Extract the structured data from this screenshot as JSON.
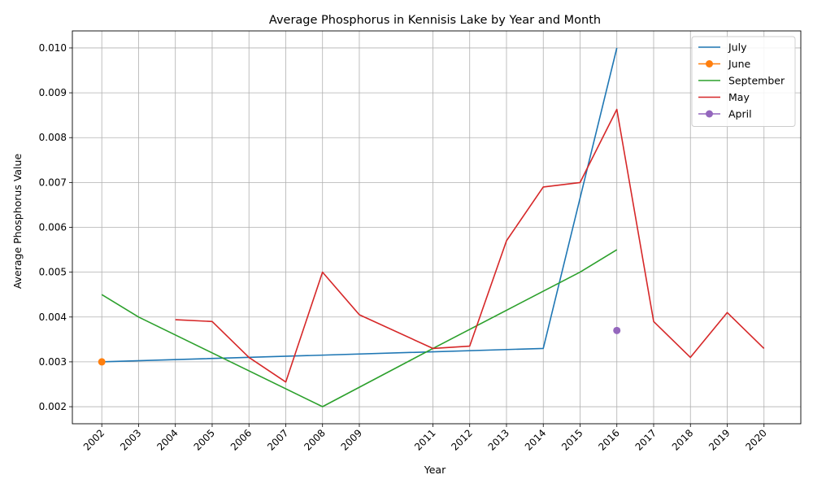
{
  "chart_data": {
    "type": "line",
    "title": "Average Phosphorus in Kennisis Lake by Year and Month",
    "xlabel": "Year",
    "ylabel": "Average Phosphorus Value",
    "xlim": [
      2001.2,
      2021.0
    ],
    "ylim": [
      0.00162,
      0.01038
    ],
    "x_ticks": [
      2002,
      2003,
      2004,
      2005,
      2006,
      2007,
      2008,
      2009,
      2011,
      2012,
      2013,
      2014,
      2015,
      2016,
      2017,
      2018,
      2019,
      2020
    ],
    "y_ticks": [
      0.002,
      0.003,
      0.004,
      0.005,
      0.006,
      0.007,
      0.008,
      0.009,
      0.01
    ],
    "y_tick_labels": [
      "0.002",
      "0.003",
      "0.004",
      "0.005",
      "0.006",
      "0.007",
      "0.008",
      "0.009",
      "0.010"
    ],
    "grid": true,
    "legend_position": "top-right",
    "series": [
      {
        "name": "July",
        "color": "#1f77b4",
        "marker": false,
        "points": [
          [
            2002,
            0.003
          ],
          [
            2014,
            0.0033
          ],
          [
            2016,
            0.01
          ]
        ]
      },
      {
        "name": "June",
        "color": "#ff7f0e",
        "marker": true,
        "points": [
          [
            2002,
            0.003
          ]
        ]
      },
      {
        "name": "September",
        "color": "#2ca02c",
        "marker": false,
        "points": [
          [
            2002,
            0.0045
          ],
          [
            2003,
            0.004
          ],
          [
            2008,
            0.002
          ],
          [
            2011,
            0.0033
          ],
          [
            2015,
            0.005
          ],
          [
            2016,
            0.0055
          ]
        ]
      },
      {
        "name": "May",
        "color": "#d62728",
        "marker": false,
        "points": [
          [
            2004,
            0.00394
          ],
          [
            2005,
            0.0039
          ],
          [
            2006,
            0.0031
          ],
          [
            2007,
            0.00255
          ],
          [
            2008,
            0.005
          ],
          [
            2009,
            0.00405
          ],
          [
            2011,
            0.0033
          ],
          [
            2012,
            0.00335
          ],
          [
            2013,
            0.0057
          ],
          [
            2014,
            0.0069
          ],
          [
            2015,
            0.007
          ],
          [
            2016,
            0.00863
          ],
          [
            2017,
            0.0039
          ],
          [
            2018,
            0.0031
          ],
          [
            2019,
            0.0041
          ],
          [
            2020,
            0.0033
          ]
        ]
      },
      {
        "name": "April",
        "color": "#9467bd",
        "marker": true,
        "points": [
          [
            2016,
            0.0037
          ]
        ]
      }
    ]
  }
}
